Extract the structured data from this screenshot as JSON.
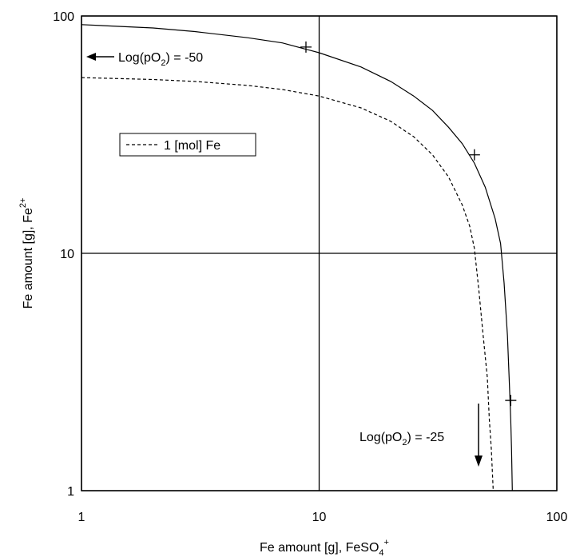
{
  "chart_data": {
    "type": "line",
    "x_scale": "log",
    "y_scale": "log",
    "xlim": [
      1,
      100
    ],
    "ylim": [
      1,
      100
    ],
    "grid": true,
    "x_ticks": [
      "1",
      "10",
      "100"
    ],
    "y_ticks": [
      "1",
      "10",
      "100"
    ],
    "xlabel": {
      "main": "Fe amount [g], FeSO",
      "sub": "4",
      "sup": "+"
    },
    "ylabel": {
      "main": "Fe amount [g], Fe",
      "sup": "2+"
    },
    "legend": {
      "placement": "upper-left",
      "entries": [
        {
          "series": "1 [mol] Fe",
          "label": "1 [mol] Fe"
        }
      ]
    },
    "series": [
      {
        "style": "solid",
        "points": [
          [
            1,
            92
          ],
          [
            2,
            89
          ],
          [
            3,
            86
          ],
          [
            5,
            81
          ],
          [
            7,
            77
          ],
          [
            10,
            70
          ],
          [
            15,
            61
          ],
          [
            20,
            53
          ],
          [
            25,
            46
          ],
          [
            30,
            40
          ],
          [
            35,
            34
          ],
          [
            40,
            29
          ],
          [
            45,
            24
          ],
          [
            50,
            19
          ],
          [
            55,
            14
          ],
          [
            58,
            11
          ],
          [
            60,
            7.5
          ],
          [
            62,
            4.5
          ],
          [
            63,
            3
          ],
          [
            64,
            2
          ],
          [
            64.5,
            1.5
          ],
          [
            65,
            1
          ]
        ]
      },
      {
        "name": "1 [mol] Fe",
        "style": "dashed",
        "points": [
          [
            1,
            55
          ],
          [
            2,
            54
          ],
          [
            3,
            53
          ],
          [
            5,
            51
          ],
          [
            7,
            49
          ],
          [
            10,
            46
          ],
          [
            15,
            41
          ],
          [
            20,
            36
          ],
          [
            25,
            31
          ],
          [
            30,
            26
          ],
          [
            35,
            21
          ],
          [
            40,
            16
          ],
          [
            43,
            13
          ],
          [
            45,
            10.5
          ],
          [
            47,
            7
          ],
          [
            49,
            4.5
          ],
          [
            51,
            3
          ],
          [
            52,
            2
          ],
          [
            53,
            1.5
          ],
          [
            54,
            1
          ]
        ]
      }
    ],
    "markers": [
      {
        "x": 8.8,
        "y": 74
      },
      {
        "x": 45,
        "y": 26
      },
      {
        "x": 64,
        "y": 2.4
      }
    ],
    "annotations": [
      {
        "id": "high",
        "text_pre": "Log(pO",
        "sub": "2",
        "text_post": ") = -50",
        "arrow": "left"
      },
      {
        "id": "low",
        "text_pre": "Log(pO",
        "sub": "2",
        "text_post": ") = -25",
        "arrow": "down"
      }
    ]
  }
}
